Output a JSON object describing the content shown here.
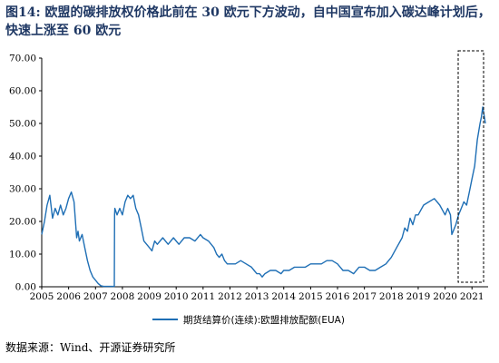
{
  "figure": {
    "title": "图14:  欧盟的碳排放权价格此前在  30  欧元下方波动，自中国宣布加入碳达峰计划后，快速上涨至 60 欧元",
    "source": "数据来源：Wind、开源证券研究所"
  },
  "chart_data": {
    "type": "line",
    "title": "",
    "xlabel": "",
    "ylabel": "",
    "ylim": [
      0,
      70
    ],
    "yticks": [
      "0.00",
      "10.00",
      "20.00",
      "30.00",
      "40.00",
      "50.00",
      "60.00",
      "70.00"
    ],
    "xlim": [
      2005.0,
      2021.6
    ],
    "xticks": [
      "2005",
      "2006",
      "2007",
      "2008",
      "2009",
      "2010",
      "2011",
      "2012",
      "2013",
      "2014",
      "2015",
      "2016",
      "2017",
      "2018",
      "2019",
      "2020",
      "2021"
    ],
    "grid": false,
    "legend_position": "bottom",
    "series": [
      {
        "name": "期货结算价(连续):欧盟排放配额(EUA)",
        "color": "#1f6fb5",
        "x": [
          2005.0,
          2005.1,
          2005.2,
          2005.3,
          2005.4,
          2005.5,
          2005.6,
          2005.7,
          2005.8,
          2005.9,
          2006.0,
          2006.1,
          2006.2,
          2006.3,
          2006.35,
          2006.4,
          2006.45,
          2006.5,
          2006.6,
          2006.7,
          2006.8,
          2006.9,
          2007.0,
          2007.1,
          2007.2,
          2007.3,
          2007.5,
          2007.7,
          2007.71,
          2007.72,
          2007.8,
          2007.9,
          2008.0,
          2008.1,
          2008.2,
          2008.3,
          2008.4,
          2008.5,
          2008.6,
          2008.7,
          2008.8,
          2008.9,
          2009.0,
          2009.1,
          2009.2,
          2009.3,
          2009.5,
          2009.7,
          2009.9,
          2010.1,
          2010.3,
          2010.5,
          2010.7,
          2010.9,
          2011.0,
          2011.2,
          2011.4,
          2011.5,
          2011.6,
          2011.7,
          2011.8,
          2011.9,
          2012.0,
          2012.2,
          2012.4,
          2012.6,
          2012.8,
          2012.9,
          2013.0,
          2013.1,
          2013.2,
          2013.3,
          2013.5,
          2013.7,
          2013.9,
          2014.0,
          2014.2,
          2014.4,
          2014.6,
          2014.8,
          2015.0,
          2015.2,
          2015.4,
          2015.6,
          2015.8,
          2016.0,
          2016.1,
          2016.2,
          2016.4,
          2016.6,
          2016.8,
          2017.0,
          2017.2,
          2017.4,
          2017.6,
          2017.8,
          2017.9,
          2018.0,
          2018.2,
          2018.4,
          2018.5,
          2018.6,
          2018.7,
          2018.8,
          2018.9,
          2019.0,
          2019.2,
          2019.4,
          2019.6,
          2019.8,
          2020.0,
          2020.1,
          2020.2,
          2020.25,
          2020.3,
          2020.4,
          2020.5,
          2020.6,
          2020.7,
          2020.8,
          2020.9,
          2021.0,
          2021.1,
          2021.2,
          2021.3,
          2021.35,
          2021.4,
          2021.5
        ],
        "y": [
          16,
          20,
          25,
          28,
          21,
          24,
          22,
          25,
          22,
          24,
          27,
          29,
          26,
          15,
          17,
          14,
          15,
          16,
          12,
          8,
          5,
          3,
          2,
          1,
          0.3,
          0.1,
          0.1,
          0.1,
          22,
          24,
          22,
          24,
          22,
          26,
          28,
          27,
          28,
          24,
          22,
          18,
          14,
          13,
          12,
          11,
          14,
          13,
          15,
          13,
          15,
          13,
          15,
          15,
          14,
          16,
          15,
          14,
          12,
          10,
          9,
          10,
          8,
          7,
          7,
          7,
          8,
          7,
          6,
          5,
          4,
          4,
          3,
          4,
          5,
          5,
          4,
          5,
          5,
          6,
          6,
          6,
          7,
          7,
          7,
          8,
          8,
          7,
          6,
          5,
          5,
          4,
          6,
          6,
          5,
          5,
          6,
          7,
          8,
          9,
          12,
          15,
          18,
          17,
          21,
          19,
          22,
          22,
          25,
          26,
          27,
          25,
          22,
          24,
          22,
          16,
          17,
          19,
          22,
          24,
          26,
          25,
          29,
          33,
          37,
          45,
          50,
          52,
          55,
          50
        ]
      }
    ]
  }
}
